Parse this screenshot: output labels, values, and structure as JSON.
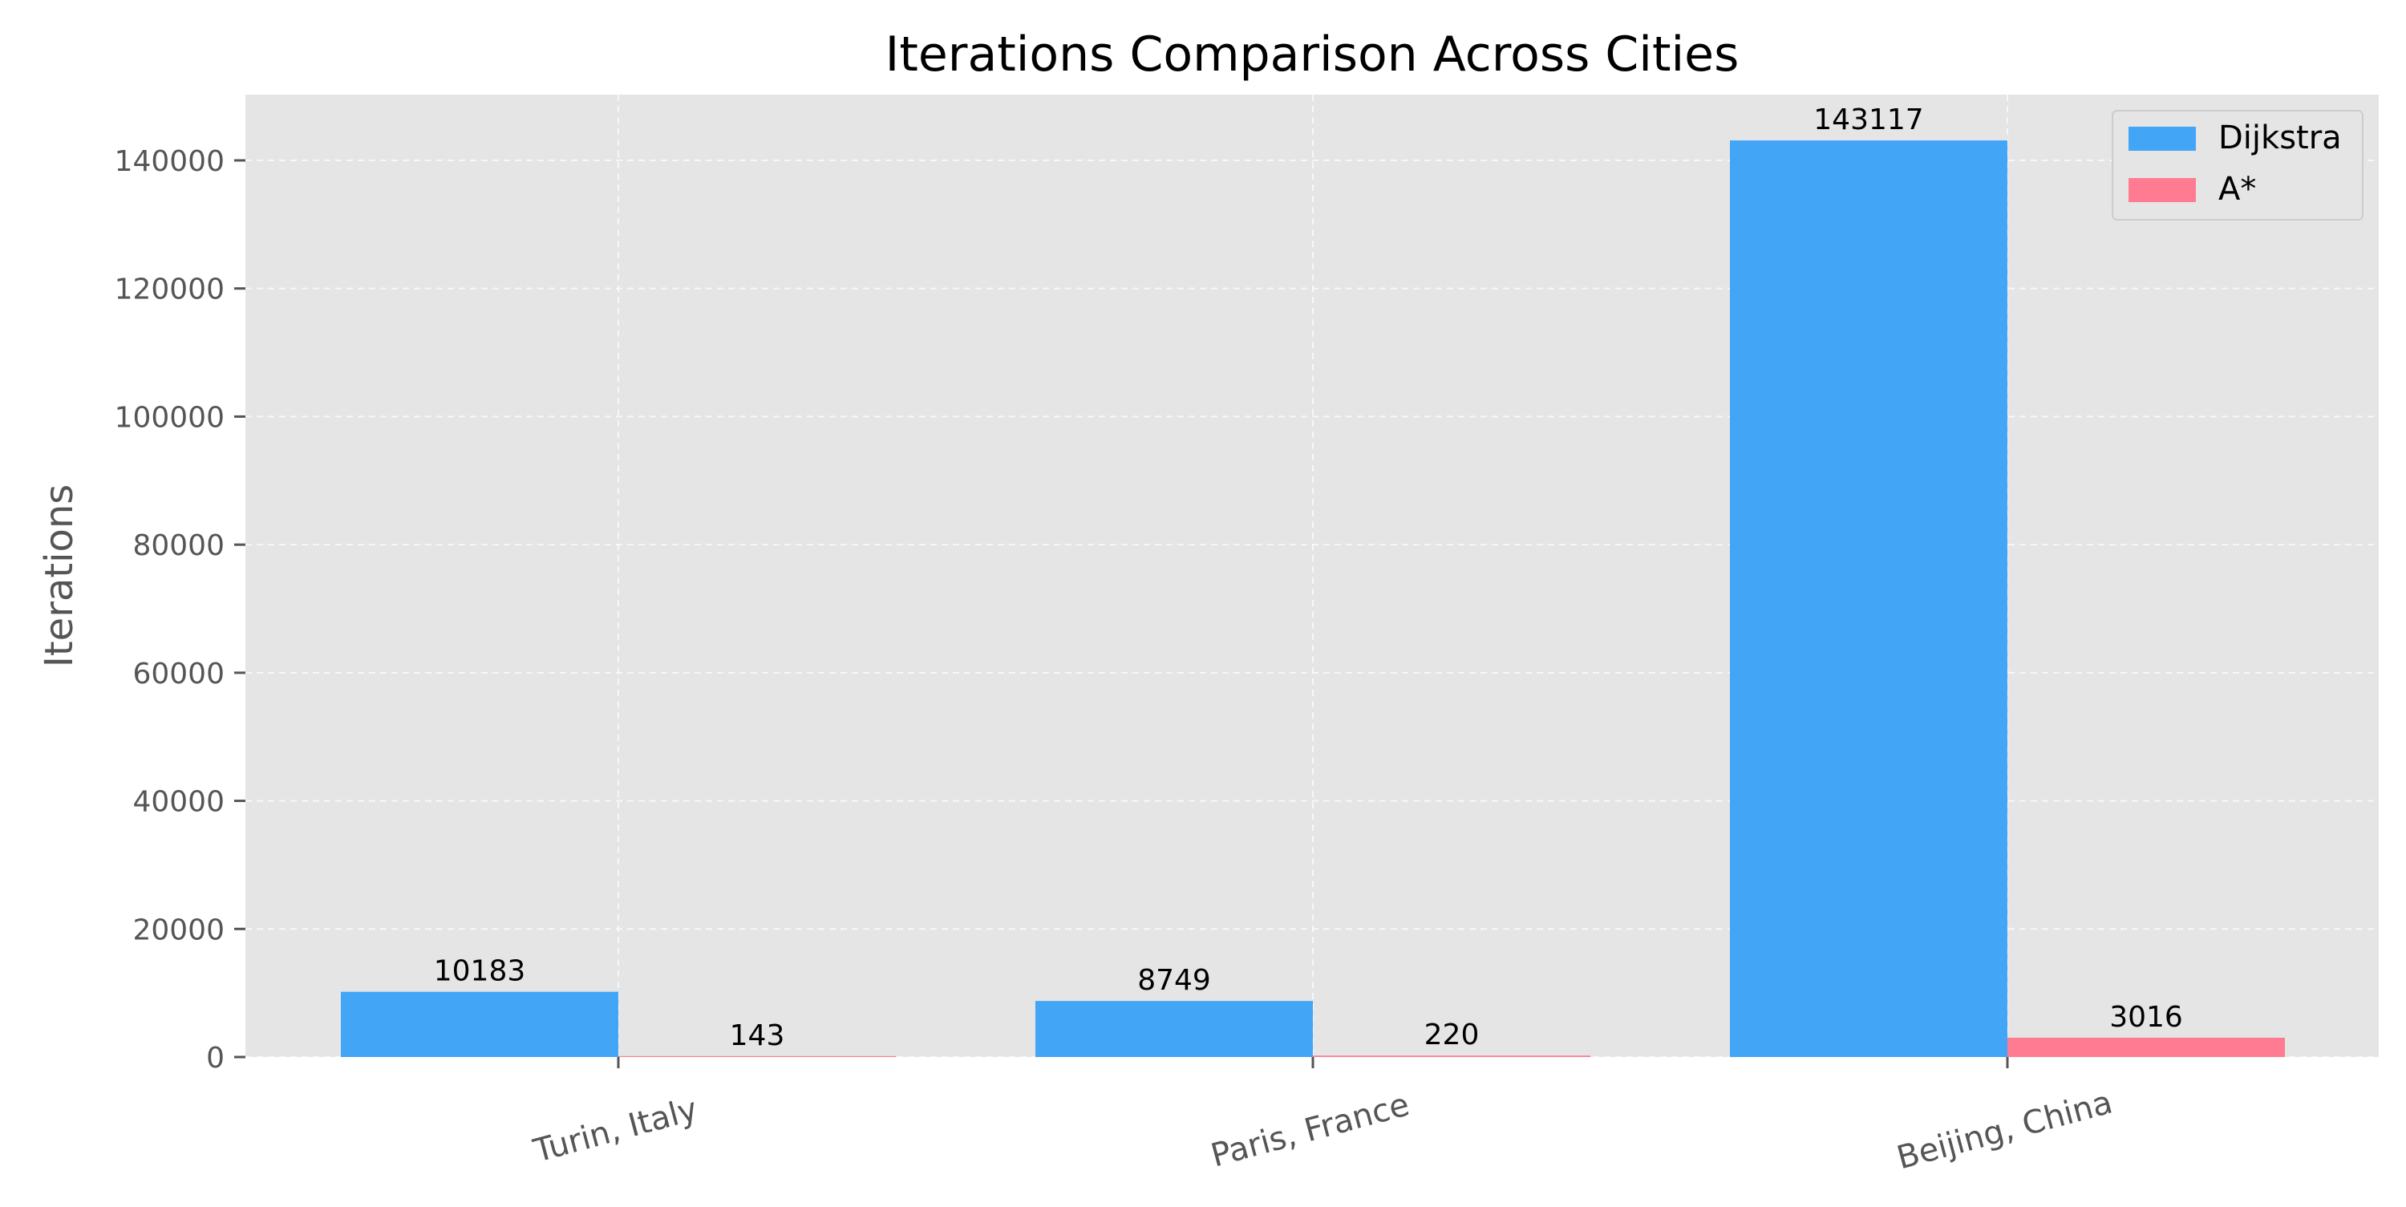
{
  "chart_data": {
    "type": "bar",
    "title": "Iterations Comparison Across Cities",
    "xlabel": "",
    "ylabel": "Iterations",
    "categories": [
      "Turin, Italy",
      "Paris, France",
      "Beijing, China"
    ],
    "series": [
      {
        "name": "Dijkstra",
        "values": [
          10183,
          8749,
          143117
        ],
        "color": "#42A5F5"
      },
      {
        "name": "A*",
        "values": [
          143,
          220,
          3016
        ],
        "color": "#FF7B91"
      }
    ],
    "ylim": [
      0,
      150268
    ],
    "yticks": [
      0,
      20000,
      40000,
      60000,
      80000,
      100000,
      120000,
      140000
    ],
    "grid": true,
    "legend_position": "top-right",
    "background_color": "#E5E5E5"
  }
}
